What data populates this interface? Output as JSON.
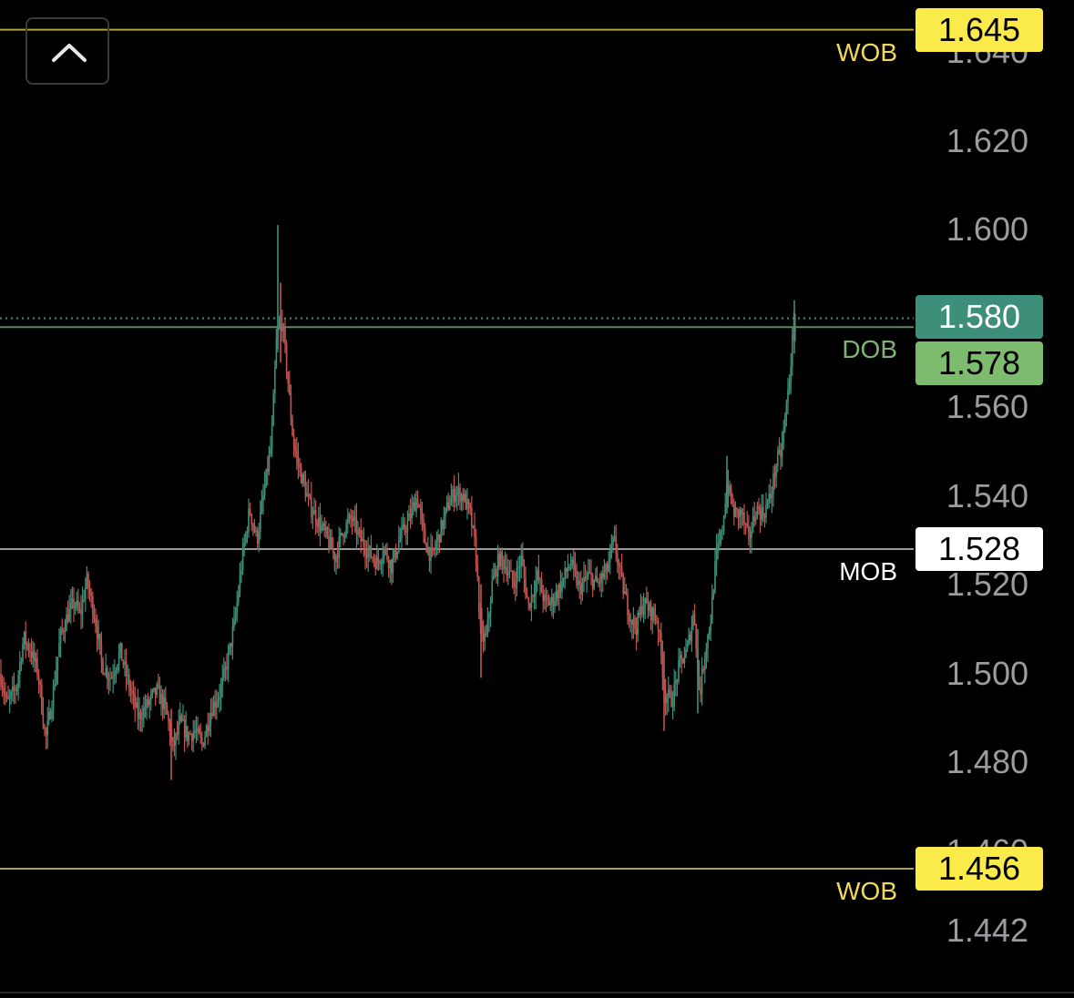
{
  "chart_data": {
    "type": "candlestick",
    "y_axis": {
      "ticks": [
        "1.640",
        "1.620",
        "1.600",
        "1.560",
        "1.540",
        "1.520",
        "1.500",
        "1.480",
        "1.460",
        "1.442"
      ],
      "range": [
        1.438,
        1.65
      ]
    },
    "levels": [
      {
        "name": "WOB",
        "price": "1.645",
        "color": "#b4a23f",
        "tag_color": "#f0d85a",
        "badge_bg": "#faeb4a",
        "badge_fg": "#000000",
        "dotted": false
      },
      {
        "name": "DOB",
        "price": "1.578",
        "color": "#5c8a58",
        "tag_color": "#7fb274",
        "badge_bg": "#7dbb6f",
        "badge_fg": "#000000",
        "dotted": false
      },
      {
        "name": "MOB",
        "price": "1.528",
        "color": "#9a9a9a",
        "tag_color": "#ffffff",
        "badge_bg": "#ffffff",
        "badge_fg": "#000000",
        "dotted": false
      },
      {
        "name": "WOB",
        "price": "1.456",
        "color": "#b4a23f",
        "tag_color": "#f0d85a",
        "badge_bg": "#faeb4a",
        "badge_fg": "#000000",
        "dotted": false
      }
    ],
    "last_price": {
      "value": "1.580",
      "color": "#3e8f7a"
    },
    "up_color": "#3e8f7a",
    "down_color": "#c25450",
    "close_path": [
      [
        0,
        1.5
      ],
      [
        8,
        1.493
      ],
      [
        18,
        1.497
      ],
      [
        26,
        1.508
      ],
      [
        34,
        1.505
      ],
      [
        42,
        1.5
      ],
      [
        50,
        1.485
      ],
      [
        58,
        1.495
      ],
      [
        66,
        1.508
      ],
      [
        74,
        1.513
      ],
      [
        82,
        1.516
      ],
      [
        88,
        1.513
      ],
      [
        95,
        1.521
      ],
      [
        104,
        1.513
      ],
      [
        112,
        1.502
      ],
      [
        122,
        1.499
      ],
      [
        132,
        1.505
      ],
      [
        142,
        1.497
      ],
      [
        152,
        1.49
      ],
      [
        162,
        1.493
      ],
      [
        172,
        1.496
      ],
      [
        182,
        1.492
      ],
      [
        190,
        1.483
      ],
      [
        198,
        1.489
      ],
      [
        206,
        1.486
      ],
      [
        214,
        1.487
      ],
      [
        222,
        1.484
      ],
      [
        232,
        1.492
      ],
      [
        242,
        1.496
      ],
      [
        250,
        1.503
      ],
      [
        258,
        1.512
      ],
      [
        266,
        1.526
      ],
      [
        274,
        1.537
      ],
      [
        282,
        1.53
      ],
      [
        290,
        1.541
      ],
      [
        298,
        1.552
      ],
      [
        304,
        1.577
      ],
      [
        310,
        1.579
      ],
      [
        316,
        1.566
      ],
      [
        322,
        1.552
      ],
      [
        330,
        1.545
      ],
      [
        340,
        1.538
      ],
      [
        350,
        1.534
      ],
      [
        360,
        1.53
      ],
      [
        368,
        1.526
      ],
      [
        376,
        1.532
      ],
      [
        386,
        1.535
      ],
      [
        396,
        1.53
      ],
      [
        406,
        1.527
      ],
      [
        414,
        1.525
      ],
      [
        422,
        1.528
      ],
      [
        430,
        1.524
      ],
      [
        438,
        1.53
      ],
      [
        448,
        1.534
      ],
      [
        458,
        1.54
      ],
      [
        466,
        1.53
      ],
      [
        474,
        1.526
      ],
      [
        482,
        1.531
      ],
      [
        492,
        1.538
      ],
      [
        500,
        1.541
      ],
      [
        508,
        1.54
      ],
      [
        516,
        1.536
      ],
      [
        522,
        1.528
      ],
      [
        528,
        1.508
      ],
      [
        534,
        1.508
      ],
      [
        540,
        1.52
      ],
      [
        548,
        1.526
      ],
      [
        556,
        1.524
      ],
      [
        564,
        1.52
      ],
      [
        572,
        1.526
      ],
      [
        580,
        1.515
      ],
      [
        590,
        1.522
      ],
      [
        598,
        1.516
      ],
      [
        606,
        1.516
      ],
      [
        616,
        1.52
      ],
      [
        626,
        1.525
      ],
      [
        636,
        1.519
      ],
      [
        646,
        1.522
      ],
      [
        656,
        1.52
      ],
      [
        666,
        1.523
      ],
      [
        674,
        1.53
      ],
      [
        682,
        1.521
      ],
      [
        690,
        1.514
      ],
      [
        698,
        1.51
      ],
      [
        706,
        1.516
      ],
      [
        714,
        1.514
      ],
      [
        722,
        1.512
      ],
      [
        730,
        1.495
      ],
      [
        738,
        1.494
      ],
      [
        746,
        1.502
      ],
      [
        754,
        1.505
      ],
      [
        762,
        1.514
      ],
      [
        768,
        1.495
      ],
      [
        774,
        1.505
      ],
      [
        780,
        1.512
      ],
      [
        786,
        1.526
      ],
      [
        792,
        1.531
      ],
      [
        798,
        1.543
      ],
      [
        806,
        1.536
      ],
      [
        814,
        1.536
      ],
      [
        822,
        1.53
      ],
      [
        830,
        1.537
      ],
      [
        838,
        1.536
      ],
      [
        846,
        1.54
      ],
      [
        852,
        1.547
      ],
      [
        858,
        1.55
      ],
      [
        862,
        1.558
      ],
      [
        866,
        1.565
      ],
      [
        870,
        1.575
      ],
      [
        874,
        1.58
      ]
    ]
  }
}
